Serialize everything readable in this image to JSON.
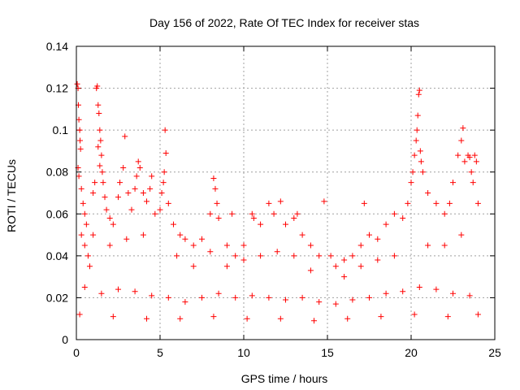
{
  "chart_data": {
    "type": "scatter",
    "title": "Day 156 of 2022, Rate Of TEC Index for receiver stas",
    "xlabel": "GPS time / hours",
    "ylabel": "ROTI / TECUs",
    "xlim": [
      0,
      25
    ],
    "ylim": [
      0,
      0.14
    ],
    "xticks": [
      "0",
      "5",
      "10",
      "15",
      "20",
      "25"
    ],
    "yticks": [
      "0",
      "0.02",
      "0.04",
      "0.06",
      "0.08",
      "0.1",
      "0.12",
      "0.14"
    ],
    "grid": true,
    "marker": "+",
    "color": "#ff0000",
    "series": [
      {
        "name": "ROTI",
        "points": [
          [
            0.05,
            0.122
          ],
          [
            0.1,
            0.12
          ],
          [
            0.12,
            0.112
          ],
          [
            0.15,
            0.105
          ],
          [
            0.2,
            0.1
          ],
          [
            0.22,
            0.095
          ],
          [
            0.25,
            0.091
          ],
          [
            0.1,
            0.082
          ],
          [
            0.15,
            0.078
          ],
          [
            0.3,
            0.072
          ],
          [
            0.4,
            0.065
          ],
          [
            0.5,
            0.06
          ],
          [
            0.6,
            0.055
          ],
          [
            0.3,
            0.05
          ],
          [
            0.5,
            0.045
          ],
          [
            0.7,
            0.04
          ],
          [
            0.8,
            0.035
          ],
          [
            1.0,
            0.07
          ],
          [
            1.1,
            0.075
          ],
          [
            1.2,
            0.12
          ],
          [
            1.25,
            0.121
          ],
          [
            1.3,
            0.112
          ],
          [
            1.35,
            0.108
          ],
          [
            1.4,
            0.1
          ],
          [
            1.45,
            0.095
          ],
          [
            1.3,
            0.092
          ],
          [
            1.5,
            0.088
          ],
          [
            1.4,
            0.083
          ],
          [
            1.55,
            0.08
          ],
          [
            1.6,
            0.075
          ],
          [
            1.7,
            0.068
          ],
          [
            1.8,
            0.062
          ],
          [
            2.0,
            0.058
          ],
          [
            2.2,
            0.055
          ],
          [
            2.5,
            0.068
          ],
          [
            2.6,
            0.075
          ],
          [
            2.8,
            0.082
          ],
          [
            2.9,
            0.097
          ],
          [
            3.1,
            0.07
          ],
          [
            3.3,
            0.062
          ],
          [
            3.5,
            0.072
          ],
          [
            3.6,
            0.078
          ],
          [
            3.7,
            0.085
          ],
          [
            3.8,
            0.082
          ],
          [
            4.0,
            0.07
          ],
          [
            4.2,
            0.066
          ],
          [
            4.4,
            0.072
          ],
          [
            4.5,
            0.078
          ],
          [
            4.7,
            0.06
          ],
          [
            5.0,
            0.062
          ],
          [
            5.1,
            0.07
          ],
          [
            5.2,
            0.075
          ],
          [
            5.25,
            0.08
          ],
          [
            5.3,
            0.1
          ],
          [
            5.35,
            0.089
          ],
          [
            5.5,
            0.065
          ],
          [
            5.8,
            0.055
          ],
          [
            6.2,
            0.05
          ],
          [
            6.5,
            0.048
          ],
          [
            7.0,
            0.045
          ],
          [
            7.5,
            0.048
          ],
          [
            8.0,
            0.06
          ],
          [
            8.2,
            0.077
          ],
          [
            8.3,
            0.072
          ],
          [
            8.4,
            0.065
          ],
          [
            8.5,
            0.058
          ],
          [
            9.0,
            0.045
          ],
          [
            9.3,
            0.06
          ],
          [
            9.5,
            0.04
          ],
          [
            10.0,
            0.045
          ],
          [
            10.5,
            0.06
          ],
          [
            10.6,
            0.058
          ],
          [
            11.0,
            0.055
          ],
          [
            11.5,
            0.065
          ],
          [
            11.8,
            0.06
          ],
          [
            12.2,
            0.066
          ],
          [
            12.5,
            0.055
          ],
          [
            13.0,
            0.058
          ],
          [
            13.2,
            0.06
          ],
          [
            13.5,
            0.05
          ],
          [
            14.0,
            0.045
          ],
          [
            14.5,
            0.04
          ],
          [
            14.8,
            0.066
          ],
          [
            15.2,
            0.04
          ],
          [
            15.5,
            0.035
          ],
          [
            16.0,
            0.038
          ],
          [
            16.5,
            0.04
          ],
          [
            17.0,
            0.045
          ],
          [
            17.2,
            0.065
          ],
          [
            17.5,
            0.05
          ],
          [
            18.0,
            0.048
          ],
          [
            18.5,
            0.055
          ],
          [
            19.0,
            0.06
          ],
          [
            19.5,
            0.058
          ],
          [
            19.8,
            0.065
          ],
          [
            20.0,
            0.075
          ],
          [
            20.1,
            0.08
          ],
          [
            20.2,
            0.088
          ],
          [
            20.3,
            0.095
          ],
          [
            20.35,
            0.1
          ],
          [
            20.4,
            0.107
          ],
          [
            20.45,
            0.117
          ],
          [
            20.5,
            0.119
          ],
          [
            20.55,
            0.09
          ],
          [
            20.6,
            0.085
          ],
          [
            20.7,
            0.08
          ],
          [
            21.0,
            0.07
          ],
          [
            21.5,
            0.065
          ],
          [
            22.0,
            0.06
          ],
          [
            22.3,
            0.065
          ],
          [
            22.5,
            0.075
          ],
          [
            22.8,
            0.088
          ],
          [
            23.0,
            0.095
          ],
          [
            23.1,
            0.101
          ],
          [
            23.2,
            0.085
          ],
          [
            23.4,
            0.088
          ],
          [
            23.5,
            0.087
          ],
          [
            23.6,
            0.08
          ],
          [
            23.7,
            0.075
          ],
          [
            23.8,
            0.088
          ],
          [
            23.9,
            0.085
          ],
          [
            24.0,
            0.065
          ],
          [
            1.0,
            0.05
          ],
          [
            2.0,
            0.045
          ],
          [
            3.0,
            0.048
          ],
          [
            4.0,
            0.05
          ],
          [
            6.0,
            0.04
          ],
          [
            7.0,
            0.035
          ],
          [
            8.0,
            0.042
          ],
          [
            9.0,
            0.035
          ],
          [
            10.0,
            0.038
          ],
          [
            11.0,
            0.04
          ],
          [
            12.0,
            0.042
          ],
          [
            13.0,
            0.04
          ],
          [
            14.0,
            0.033
          ],
          [
            16.0,
            0.03
          ],
          [
            17.0,
            0.035
          ],
          [
            18.0,
            0.038
          ],
          [
            19.0,
            0.04
          ],
          [
            21.0,
            0.045
          ],
          [
            22.0,
            0.045
          ],
          [
            23.0,
            0.05
          ],
          [
            0.5,
            0.025
          ],
          [
            1.5,
            0.022
          ],
          [
            2.5,
            0.024
          ],
          [
            3.5,
            0.023
          ],
          [
            4.5,
            0.021
          ],
          [
            5.5,
            0.02
          ],
          [
            6.5,
            0.018
          ],
          [
            7.5,
            0.02
          ],
          [
            8.5,
            0.022
          ],
          [
            9.5,
            0.02
          ],
          [
            10.5,
            0.021
          ],
          [
            11.5,
            0.02
          ],
          [
            12.5,
            0.019
          ],
          [
            13.5,
            0.02
          ],
          [
            14.5,
            0.018
          ],
          [
            15.5,
            0.017
          ],
          [
            16.5,
            0.019
          ],
          [
            17.5,
            0.02
          ],
          [
            18.5,
            0.022
          ],
          [
            19.5,
            0.023
          ],
          [
            20.5,
            0.025
          ],
          [
            21.5,
            0.024
          ],
          [
            22.5,
            0.022
          ],
          [
            23.5,
            0.021
          ],
          [
            0.2,
            0.012
          ],
          [
            2.2,
            0.011
          ],
          [
            4.2,
            0.01
          ],
          [
            6.2,
            0.01
          ],
          [
            8.2,
            0.011
          ],
          [
            10.2,
            0.01
          ],
          [
            12.2,
            0.01
          ],
          [
            14.2,
            0.009
          ],
          [
            16.2,
            0.01
          ],
          [
            18.2,
            0.011
          ],
          [
            20.2,
            0.012
          ],
          [
            22.2,
            0.011
          ],
          [
            24.0,
            0.012
          ]
        ]
      }
    ]
  }
}
